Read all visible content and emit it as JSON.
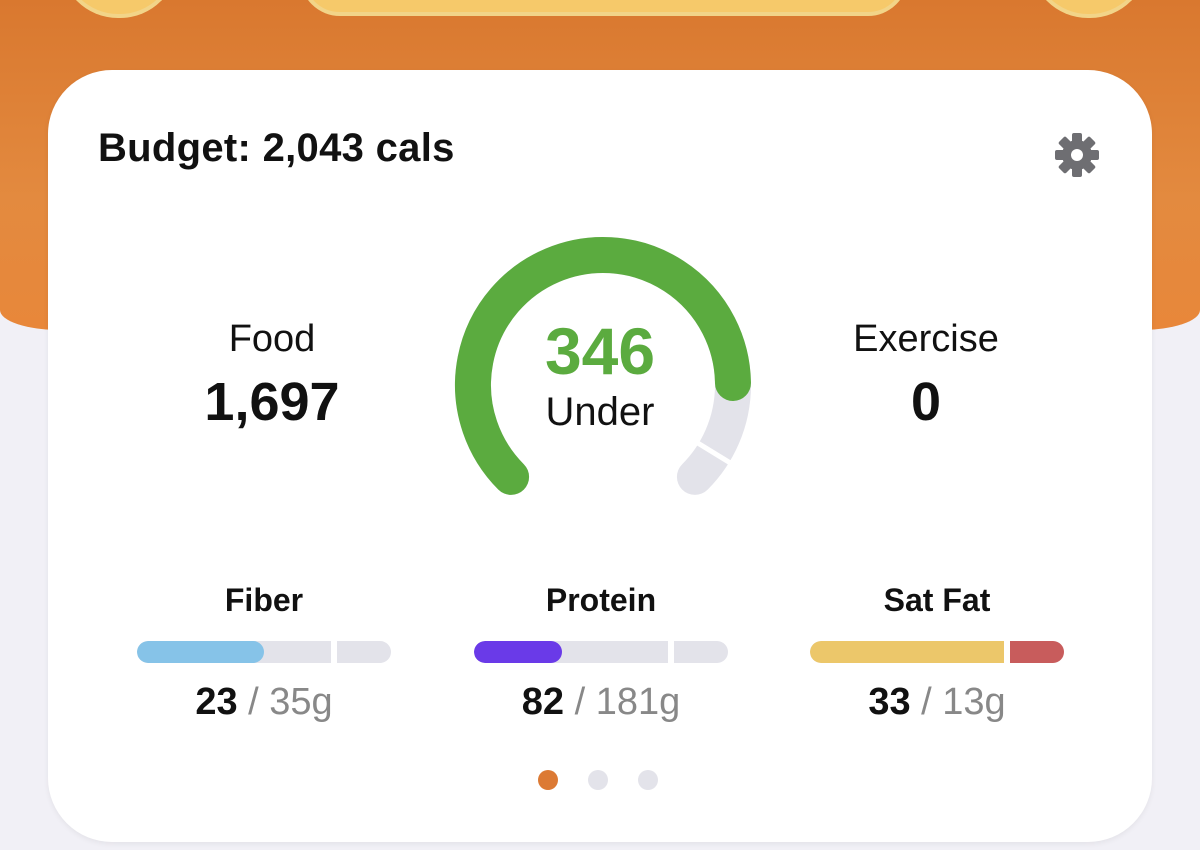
{
  "budget": {
    "title": "Budget: 2,043 cals"
  },
  "stats": {
    "food": {
      "label": "Food",
      "value": "1,697"
    },
    "exercise": {
      "label": "Exercise",
      "value": "0"
    }
  },
  "gauge": {
    "number": "346",
    "label": "Under",
    "progress": 0.83,
    "color": "#5bab3f",
    "track_color": "#e3e3ea"
  },
  "macros": [
    {
      "name": "Fiber",
      "current": "23",
      "separator": " / ",
      "target": "35g",
      "fill": 0.657,
      "color": "#86c3e8",
      "over_color": "#e3e3ea"
    },
    {
      "name": "Protein",
      "current": "82",
      "separator": " / ",
      "target": "181g",
      "fill": 0.453,
      "color": "#6a3ae8",
      "over_color": "#e3e3ea"
    },
    {
      "name": "Sat Fat",
      "current": "33",
      "separator": " / ",
      "target": "13g",
      "fill": 1.0,
      "color": "#ecc76a",
      "over_color": "#c85c5c"
    }
  ],
  "pager": {
    "pages": 3,
    "active": 0,
    "active_color": "#dc7a34"
  },
  "icons": {
    "settings": "gear-icon"
  }
}
